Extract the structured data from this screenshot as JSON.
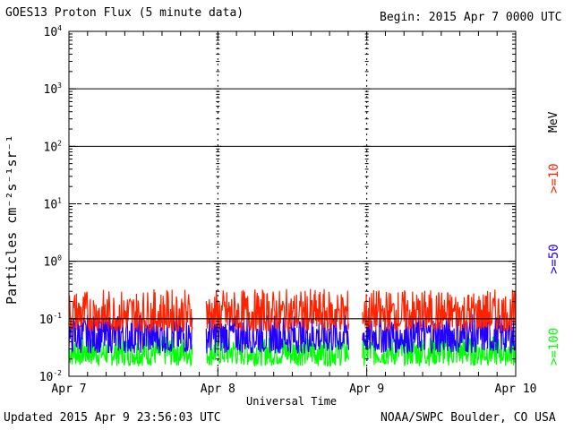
{
  "header": {
    "title": "GOES13 Proton Flux (5 minute data)",
    "begin": "Begin: 2015 Apr 7 0000 UTC"
  },
  "footer": {
    "updated": "Updated 2015 Apr  9 23:56:03 UTC",
    "credit": "NOAA/SWPC Boulder, CO USA"
  },
  "colors": {
    "ge10": "#ff2200",
    "ge50": "#2200ff",
    "ge100": "#00ff00",
    "threshold_line": "#000000"
  },
  "chart_data": {
    "type": "line",
    "title": "GOES13 Proton Flux (5 minute data)",
    "xlabel": "Universal Time",
    "ylabel": "Particles cm⁻²s⁻¹sr⁻¹",
    "y_scale": "log",
    "ylim": [
      0.01,
      10000
    ],
    "y_ticks": [
      {
        "value": 0.01,
        "base": "10",
        "exp": "-2"
      },
      {
        "value": 0.1,
        "base": "10",
        "exp": "-1"
      },
      {
        "value": 1,
        "base": "10",
        "exp": "0"
      },
      {
        "value": 10,
        "base": "10",
        "exp": "1"
      },
      {
        "value": 100,
        "base": "10",
        "exp": "2"
      },
      {
        "value": 1000,
        "base": "10",
        "exp": "3"
      },
      {
        "value": 10000,
        "base": "10",
        "exp": "4"
      }
    ],
    "x_ticks": [
      "Apr 7",
      "Apr 8",
      "Apr 9",
      "Apr 10"
    ],
    "xlim_days": [
      0,
      3
    ],
    "grid": {
      "solid_levels": [
        1,
        100,
        1000
      ],
      "dashed_levels": [
        10
      ],
      "threshold_level": 0.1
    },
    "unit_label": "MeV",
    "data_gaps": [
      [
        0.83,
        0.92
      ],
      [
        1.88,
        1.97
      ]
    ],
    "series": [
      {
        "name": ">=10",
        "color": "#ff2200",
        "baseline": 0.1,
        "low": 0.06,
        "high": 0.33
      },
      {
        "name": ">=50",
        "color": "#2200ff",
        "baseline": 0.045,
        "low": 0.025,
        "high": 0.12
      },
      {
        "name": ">=100",
        "color": "#00ff00",
        "baseline": 0.025,
        "low": 0.015,
        "high": 0.05
      }
    ]
  }
}
